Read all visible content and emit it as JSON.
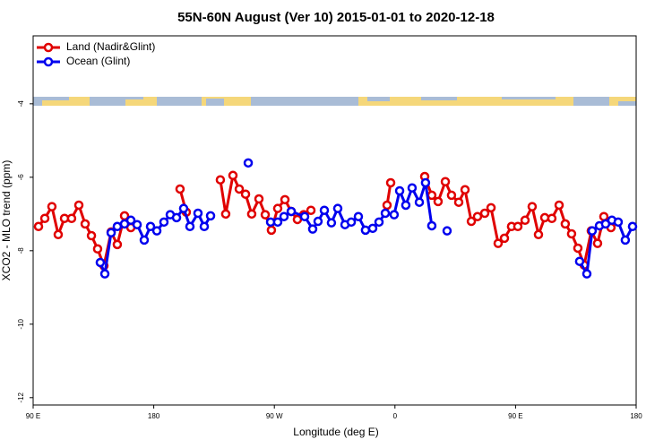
{
  "chart_data": {
    "type": "line",
    "title": "55N-60N August (Ver 10)   2015-01-01 to 2020-12-18",
    "x_label": "Longitude (deg E)",
    "y_label": "XCO2 - MLO trend (ppm)",
    "xlim": [
      90,
      540
    ],
    "ylim": [
      -12.2,
      -2.15
    ],
    "xticks": [
      {
        "value": 90,
        "label": "90 E"
      },
      {
        "value": 180,
        "label": "180"
      },
      {
        "value": 270,
        "label": "90 W"
      },
      {
        "value": 360,
        "label": "0"
      },
      {
        "value": 450,
        "label": "90 E"
      },
      {
        "value": 540,
        "label": "180"
      }
    ],
    "yticks": [
      -4,
      -6,
      -8,
      -10,
      -12
    ],
    "legend": "top-left",
    "series": [
      {
        "name": "Land (Nadir&Glint)",
        "color": "#e00000",
        "x": [
          94.0,
          98.7,
          104.0,
          108.7,
          113.4,
          118.7,
          124.1,
          128.8,
          133.5,
          138.1,
          142.8,
          148.2,
          152.8,
          158.2,
          162.9,
          null,
          199.6,
          204.3,
          null,
          229.7,
          233.7,
          239.1,
          243.8,
          248.5,
          253.1,
          258.5,
          263.2,
          267.8,
          272.5,
          277.9,
          282.6,
          287.2,
          291.9,
          297.3,
          null,
          354.1,
          356.8,
          null,
          382.2,
          387.5,
          392.2,
          397.6,
          402.2,
          407.6,
          412.3,
          417.0,
          421.6,
          427.0,
          431.7,
          437.0,
          441.7,
          447.0,
          451.7,
          457.1,
          462.4,
          467.1,
          471.8,
          477.1,
          482.5,
          487.1,
          491.8,
          496.5,
          501.2,
          506.5,
          511.2,
          515.9,
          521.2
        ],
        "values": [
          -7.34,
          -7.12,
          -6.8,
          -7.56,
          -7.12,
          -7.12,
          -6.76,
          -7.27,
          -7.59,
          -7.95,
          -8.41,
          -7.49,
          -7.83,
          -7.05,
          -7.37,
          null,
          -6.32,
          -6.95,
          null,
          -6.07,
          -7.0,
          -5.95,
          -6.32,
          -6.46,
          -7.0,
          -6.59,
          -7.02,
          -7.44,
          -6.85,
          -6.61,
          -6.93,
          -7.15,
          -7.02,
          -6.9,
          null,
          -6.76,
          -6.15,
          null,
          -5.98,
          -6.49,
          -6.66,
          -6.12,
          -6.49,
          -6.68,
          -6.34,
          -7.2,
          -7.07,
          -6.98,
          -6.83,
          -7.8,
          -7.66,
          -7.34,
          -7.34,
          -7.17,
          -6.8,
          -7.56,
          -7.1,
          -7.12,
          -6.76,
          -7.27,
          -7.54,
          -7.93,
          -8.39,
          -7.46,
          -7.8,
          -7.07,
          -7.37
        ]
      },
      {
        "name": "Ocean (Glint)",
        "color": "#0000ee",
        "x": [
          140.1,
          143.5,
          148.2,
          152.8,
          158.2,
          162.9,
          167.6,
          172.9,
          177.6,
          182.3,
          187.6,
          192.3,
          197.0,
          202.3,
          207.0,
          213.0,
          217.7,
          222.4,
          null,
          250.5,
          null,
          267.2,
          272.5,
          277.2,
          282.6,
          292.6,
          298.6,
          302.6,
          307.3,
          312.6,
          317.3,
          322.7,
          327.4,
          332.7,
          338.0,
          343.4,
          348.1,
          352.8,
          359.4,
          363.5,
          368.1,
          372.8,
          378.2,
          382.8,
          387.5,
          null,
          398.9,
          null,
          497.8,
          503.2,
          507.2,
          512.6,
          517.2,
          521.9,
          526.6,
          531.9,
          537.3
        ],
        "values": [
          -8.32,
          -8.63,
          -7.51,
          -7.34,
          -7.27,
          -7.17,
          -7.29,
          -7.71,
          -7.34,
          -7.46,
          -7.22,
          -7.02,
          -7.1,
          -6.85,
          -7.34,
          -6.98,
          -7.34,
          -7.05,
          null,
          -5.61,
          null,
          -7.22,
          -7.22,
          -7.07,
          -6.93,
          -7.07,
          -7.41,
          -7.2,
          -6.9,
          -7.24,
          -6.85,
          -7.29,
          -7.22,
          -7.07,
          -7.44,
          -7.39,
          -7.22,
          -6.98,
          -7.02,
          -6.37,
          -6.76,
          -6.29,
          -6.68,
          -6.15,
          -7.32,
          null,
          -7.46,
          null,
          -8.29,
          -8.63,
          -7.46,
          -7.32,
          -7.27,
          -7.17,
          -7.22,
          -7.71,
          -7.34
        ]
      }
    ]
  }
}
